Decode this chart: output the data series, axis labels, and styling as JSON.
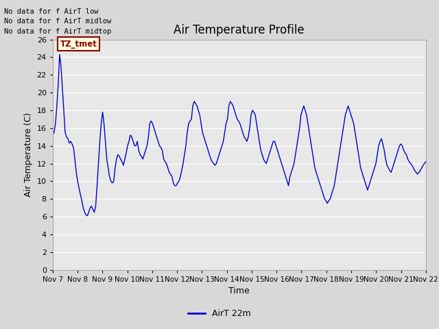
{
  "title": "Air Temperature Profile",
  "xlabel": "Time",
  "ylabel": "Air Temperature (C)",
  "legend_label": "AirT 22m",
  "ylim": [
    0,
    26
  ],
  "yticks": [
    0,
    2,
    4,
    6,
    8,
    10,
    12,
    14,
    16,
    18,
    20,
    22,
    24,
    26
  ],
  "x_tick_labels": [
    "Nov 7",
    "Nov 8",
    "Nov 9",
    "Nov 10",
    "Nov 11",
    "Nov 12",
    "Nov 13",
    "Nov 14",
    "Nov 15",
    "Nov 16",
    "Nov 17",
    "Nov 18",
    "Nov 19",
    "Nov 20",
    "Nov 21",
    "Nov 22"
  ],
  "annotations": [
    "No data for f AirT low",
    "No data for f AirT midlow",
    "No data for f AirT midtop"
  ],
  "legend_box_text": "TZ_tmet",
  "line_color": "#0000cc",
  "fig_bg_color": "#d8d8d8",
  "plot_bg_color": "#e8e8e8",
  "grid_color": "#ffffff",
  "figsize": [
    6.4,
    4.8
  ],
  "dpi": 100,
  "temperatures": [
    15.2,
    15.5,
    16.5,
    18.5,
    21.0,
    24.3,
    23.0,
    20.5,
    18.0,
    15.5,
    15.0,
    14.8,
    14.3,
    14.5,
    14.2,
    13.8,
    12.5,
    11.0,
    10.0,
    9.2,
    8.5,
    7.8,
    7.0,
    6.5,
    6.2,
    6.1,
    6.5,
    7.0,
    7.2,
    6.8,
    6.5,
    7.2,
    9.5,
    12.0,
    14.5,
    16.5,
    17.8,
    16.5,
    14.5,
    12.5,
    11.5,
    10.5,
    10.0,
    9.8,
    10.0,
    11.5,
    12.5,
    13.0,
    12.8,
    12.5,
    12.2,
    11.8,
    12.5,
    13.2,
    14.0,
    14.5,
    15.2,
    15.0,
    14.5,
    14.0,
    14.0,
    14.5,
    13.5,
    13.0,
    12.8,
    12.5,
    13.0,
    13.5,
    14.0,
    15.0,
    16.5,
    16.8,
    16.5,
    16.0,
    15.5,
    15.0,
    14.5,
    14.0,
    13.8,
    13.5,
    12.5,
    12.2,
    12.0,
    11.5,
    11.0,
    10.8,
    10.5,
    9.8,
    9.5,
    9.5,
    9.8,
    10.0,
    10.5,
    11.2,
    12.0,
    13.0,
    14.0,
    15.5,
    16.5,
    16.8,
    17.0,
    18.5,
    19.0,
    18.8,
    18.5,
    18.0,
    17.5,
    16.5,
    15.5,
    15.0,
    14.5,
    14.0,
    13.5,
    13.0,
    12.5,
    12.2,
    12.0,
    11.8,
    12.0,
    12.5,
    13.0,
    13.5,
    14.0,
    14.5,
    15.5,
    16.5,
    17.0,
    18.5,
    19.0,
    18.8,
    18.5,
    18.0,
    17.5,
    17.0,
    16.8,
    16.5,
    16.0,
    15.5,
    15.0,
    14.8,
    14.5,
    15.0,
    16.0,
    17.5,
    18.0,
    17.8,
    17.5,
    16.5,
    15.5,
    14.5,
    13.5,
    13.0,
    12.5,
    12.2,
    12.0,
    12.5,
    13.0,
    13.5,
    14.0,
    14.5,
    14.5,
    14.0,
    13.5,
    13.0,
    12.5,
    12.0,
    11.5,
    11.0,
    10.5,
    10.0,
    9.5,
    10.5,
    11.0,
    11.5,
    12.0,
    13.0,
    14.0,
    15.0,
    16.0,
    17.5,
    18.0,
    18.5,
    18.0,
    17.5,
    16.5,
    15.5,
    14.5,
    13.5,
    12.5,
    11.5,
    11.0,
    10.5,
    10.0,
    9.5,
    9.0,
    8.5,
    8.0,
    7.8,
    7.5,
    7.8,
    8.0,
    8.5,
    9.0,
    9.5,
    10.5,
    11.5,
    12.5,
    13.5,
    14.5,
    15.5,
    16.5,
    17.5,
    18.0,
    18.5,
    18.0,
    17.5,
    17.0,
    16.5,
    15.5,
    14.5,
    13.5,
    12.5,
    11.5,
    11.0,
    10.5,
    10.0,
    9.5,
    9.0,
    9.5,
    10.0,
    10.5,
    11.0,
    11.5,
    12.0,
    13.0,
    14.0,
    14.5,
    14.8,
    14.2,
    13.5,
    12.5,
    11.8,
    11.5,
    11.2,
    11.0,
    11.5,
    12.0,
    12.5,
    13.0,
    13.5,
    14.0,
    14.2,
    14.0,
    13.5,
    13.2,
    13.0,
    12.5,
    12.2,
    12.0,
    11.8,
    11.5,
    11.2,
    11.0,
    10.8,
    11.0,
    11.2,
    11.5,
    11.8,
    12.0,
    12.2
  ]
}
